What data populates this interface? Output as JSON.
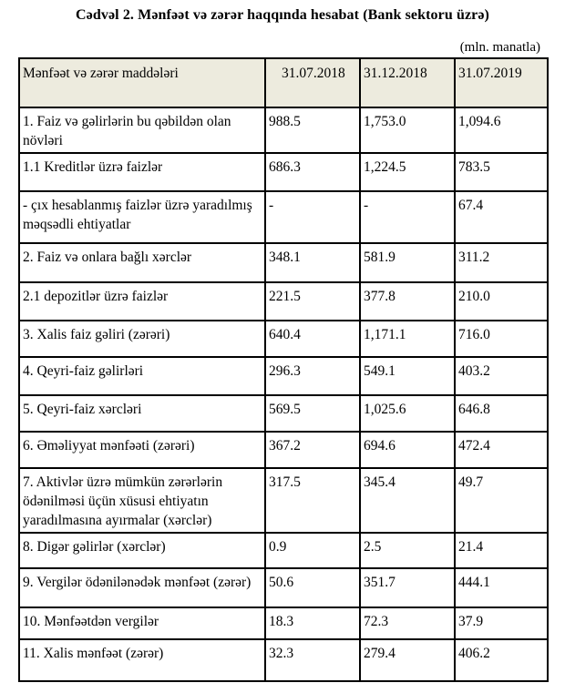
{
  "title": "Cədvəl 2. Mənfəət və zərər haqqında hesabat (Bank sektoru üzrə)",
  "unit_note": "(mln. manatla)",
  "colors": {
    "header_bg": "#edebde",
    "border": "#000000",
    "text": "#000000"
  },
  "table": {
    "columns": [
      "Mənfəət və zərər maddələri",
      "31.07.2018",
      "31.12.2018",
      "31.07.2019"
    ],
    "rows": [
      {
        "label": "1. Faiz və gəlirlərin bu qəbildən olan növləri",
        "values": [
          "988.5",
          "1,753.0",
          "1,094.6"
        ]
      },
      {
        "label": "1.1 Kreditlər üzrə faizlər",
        "values": [
          "686.3",
          "1,224.5",
          "783.5"
        ]
      },
      {
        "label": "- çıx hesablanmış faizlər üzrə yaradılmış məqsədli ehtiyatlar",
        "values": [
          "-",
          "-",
          "67.4"
        ]
      },
      {
        "label": "2. Faiz və onlara bağlı xərclər",
        "values": [
          "348.1",
          "581.9",
          "311.2"
        ]
      },
      {
        "label": "2.1 depozitlər üzrə faizlər",
        "values": [
          "221.5",
          "377.8",
          "210.0"
        ]
      },
      {
        "label": "3. Xalis faiz gəliri (zərəri)",
        "values": [
          "640.4",
          "1,171.1",
          "716.0"
        ]
      },
      {
        "label": "4. Qeyri-faiz gəlirləri",
        "values": [
          "296.3",
          "549.1",
          "403.2"
        ]
      },
      {
        "label": "5. Qeyri-faiz xərcləri",
        "values": [
          "569.5",
          "1,025.6",
          "646.8"
        ]
      },
      {
        "label": "6. Əməliyyat mənfəəti (zərəri)",
        "values": [
          "367.2",
          "694.6",
          "472.4"
        ]
      },
      {
        "label": "7. Aktivlər üzrə mümkün zərərlərin ödənilməsi üçün xüsusi ehtiyatın yaradılmasına ayırmalar (xərclər)",
        "values": [
          "317.5",
          "345.4",
          "49.7"
        ]
      },
      {
        "label": "8. Digər gəlirlər (xərclər)",
        "values": [
          "0.9",
          "2.5",
          "21.4"
        ]
      },
      {
        "label": "9. Vergilər ödənilənədək mənfəət (zərər)",
        "values": [
          "50.6",
          "351.7",
          "444.1"
        ]
      },
      {
        "label": "10. Mənfəətdən vergilər",
        "values": [
          "18.3",
          "72.3",
          "37.9"
        ]
      },
      {
        "label": "11. Xalis mənfəət (zərər)",
        "values": [
          "32.3",
          "279.4",
          "406.2"
        ]
      }
    ]
  }
}
